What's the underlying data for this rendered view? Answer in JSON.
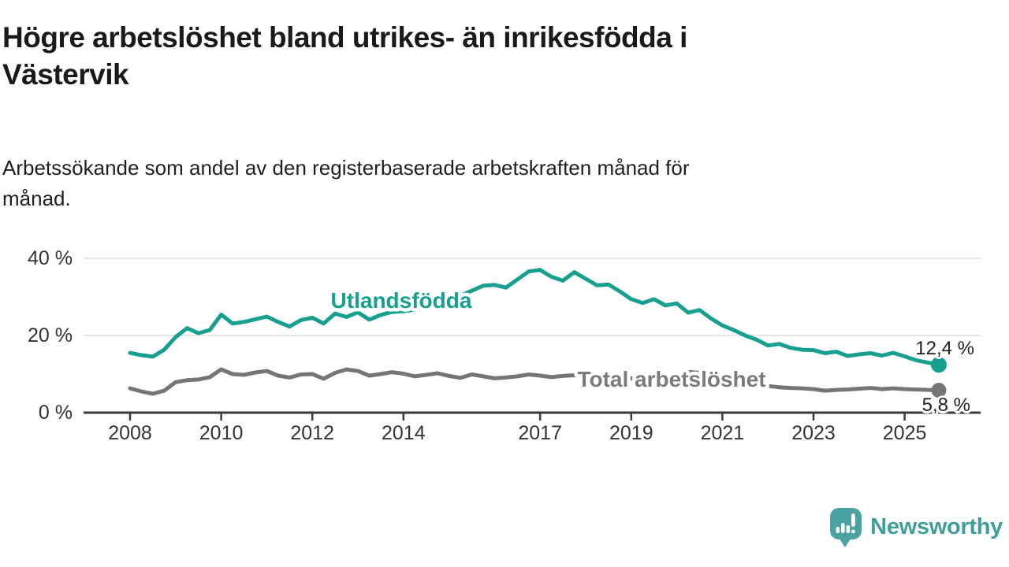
{
  "header": {
    "title": "Högre arbetslöshet bland utrikes- än inrikesfödda i\nVästervik",
    "subtitle": "Arbetssökande som andel av den registerbaserade arbetskraften månad för\nmånad."
  },
  "colors": {
    "accent_teal": "#17a08f",
    "line_gray": "#757575",
    "label_gray": "#7b7b7b",
    "gridline": "#dedede",
    "axis": "#3b3b3b",
    "tick_text": "#333333",
    "value_label": "#222222",
    "logo_teal": "#4aa3a0"
  },
  "chart_data": {
    "type": "line",
    "x_start": 2008,
    "x_step": 0.25,
    "xlim": [
      2007.9,
      2025.9
    ],
    "ylim": [
      0,
      42
    ],
    "grid": "horizontal",
    "x_ticks": [
      {
        "year": 2008,
        "label": "2008"
      },
      {
        "year": 2010,
        "label": "2010"
      },
      {
        "year": 2012,
        "label": "2012"
      },
      {
        "year": 2014,
        "label": "2014"
      },
      {
        "year": 2017,
        "label": "2017"
      },
      {
        "year": 2019,
        "label": "2019"
      },
      {
        "year": 2021,
        "label": "2021"
      },
      {
        "year": 2023,
        "label": "2023"
      },
      {
        "year": 2025,
        "label": "2025"
      }
    ],
    "y_ticks": [
      {
        "value": 0,
        "label": "0 %"
      },
      {
        "value": 20,
        "label": "20 %"
      },
      {
        "value": 40,
        "label": "40 %"
      }
    ],
    "series": [
      {
        "name": "Utlandsfödda",
        "color": "#17a08f",
        "end_label": "12,4 %",
        "end_value": 12.4,
        "values": [
          15.5,
          14.9,
          14.5,
          16.3,
          19.6,
          21.9,
          20.6,
          21.4,
          25.4,
          23.1,
          23.5,
          24.2,
          24.9,
          23.5,
          22.3,
          24.0,
          24.6,
          23.1,
          25.7,
          24.8,
          26.0,
          24.1,
          25.3,
          26.1,
          26.3,
          26.7,
          27.4,
          28.2,
          29.4,
          30.3,
          31.6,
          32.9,
          33.1,
          32.4,
          34.5,
          36.6,
          37.0,
          35.2,
          34.2,
          36.4,
          34.7,
          33.0,
          33.2,
          31.4,
          29.4,
          28.4,
          29.4,
          27.8,
          28.3,
          25.9,
          26.6,
          24.4,
          22.6,
          21.4,
          20.0,
          18.9,
          17.4,
          17.8,
          16.8,
          16.3,
          16.2,
          15.4,
          15.8,
          14.7,
          15.1,
          15.4,
          14.8,
          15.5,
          14.6,
          13.6,
          13.0,
          12.4
        ]
      },
      {
        "name": "Total arbetslöshet",
        "color": "#757575",
        "label_color": "#7b7b7b",
        "end_label": "5,8 %",
        "end_value": 5.8,
        "values": [
          6.3,
          5.5,
          4.9,
          5.7,
          7.9,
          8.4,
          8.6,
          9.2,
          11.2,
          10.0,
          9.8,
          10.4,
          10.8,
          9.6,
          9.1,
          9.9,
          10.0,
          8.8,
          10.3,
          11.2,
          10.8,
          9.6,
          10.0,
          10.5,
          10.1,
          9.4,
          9.8,
          10.2,
          9.5,
          9.0,
          9.9,
          9.4,
          8.9,
          9.1,
          9.4,
          9.9,
          9.6,
          9.2,
          9.5,
          9.7,
          9.5,
          9.2,
          9.4,
          9.1,
          8.9,
          8.7,
          9.0,
          8.8,
          9.4,
          10.6,
          10.3,
          9.7,
          9.2,
          8.6,
          8.0,
          7.4,
          6.9,
          6.6,
          6.4,
          6.3,
          6.1,
          5.7,
          5.9,
          6.0,
          6.2,
          6.4,
          6.1,
          6.3,
          6.1,
          6.0,
          5.9,
          5.8
        ]
      }
    ]
  },
  "branding": {
    "logo_text": "Newsworthy"
  }
}
